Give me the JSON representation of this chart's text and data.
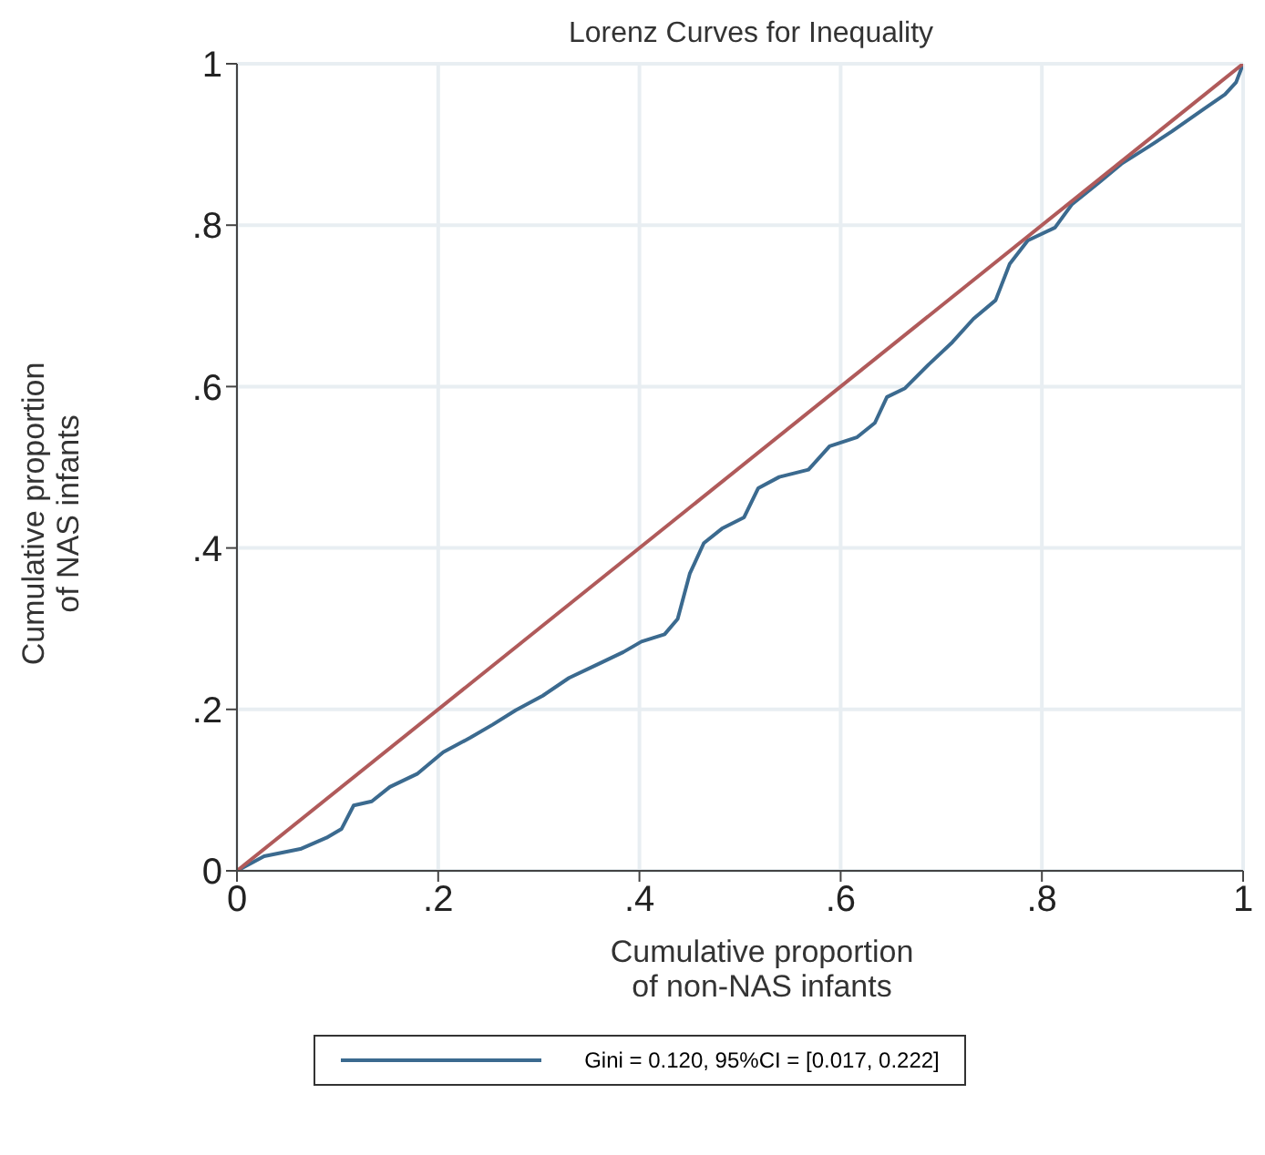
{
  "chart_data": {
    "type": "line",
    "title": "Lorenz Curves for Inequality",
    "xlabel": "Cumulative proportion of non-NAS infants",
    "ylabel": "Cumulative proportion of NAS infants",
    "xlim": [
      0,
      1
    ],
    "ylim": [
      0,
      1
    ],
    "xticks": [
      0,
      {
        "value": 0.2,
        "label": ".2"
      },
      {
        "value": 0.4,
        "label": ".4"
      },
      {
        "value": 0.6,
        "label": ".6"
      },
      {
        "value": 0.8,
        "label": ".8"
      },
      1
    ],
    "yticks": [
      0,
      {
        "value": 0.2,
        "label": ".2"
      },
      {
        "value": 0.4,
        "label": ".4"
      },
      {
        "value": 0.6,
        "label": ".6"
      },
      {
        "value": 0.8,
        "label": ".8"
      },
      1
    ],
    "grid": true,
    "legend": "bottom",
    "marker": "none",
    "line_style": "solid",
    "series": [
      {
        "name": "Gini = 0.120, 95%CI = [0.017, 0.222]",
        "color": "#3b6a8f",
        "x": [
          0,
          0.027,
          0.063,
          0.089,
          0.104,
          0.116,
          0.134,
          0.152,
          0.179,
          0.205,
          0.232,
          0.254,
          0.277,
          0.304,
          0.33,
          0.357,
          0.384,
          0.402,
          0.425,
          0.438,
          0.45,
          0.464,
          0.482,
          0.504,
          0.518,
          0.539,
          0.568,
          0.589,
          0.616,
          0.634,
          0.646,
          0.664,
          0.688,
          0.711,
          0.732,
          0.754,
          0.768,
          0.786,
          0.813,
          0.83,
          0.857,
          0.879,
          0.907,
          0.929,
          0.961,
          0.982,
          0.993,
          1
        ],
        "values": [
          0,
          0.018,
          0.027,
          0.041,
          0.052,
          0.081,
          0.086,
          0.104,
          0.12,
          0.147,
          0.165,
          0.181,
          0.199,
          0.217,
          0.239,
          0.255,
          0.271,
          0.284,
          0.293,
          0.312,
          0.368,
          0.406,
          0.424,
          0.438,
          0.474,
          0.488,
          0.497,
          0.526,
          0.537,
          0.555,
          0.587,
          0.598,
          0.628,
          0.655,
          0.684,
          0.707,
          0.752,
          0.781,
          0.797,
          0.826,
          0.853,
          0.876,
          0.898,
          0.916,
          0.944,
          0.962,
          0.977,
          1
        ]
      },
      {
        "color": "#b05a5a",
        "x": [
          0,
          1
        ],
        "values": [
          0,
          1
        ]
      }
    ]
  }
}
